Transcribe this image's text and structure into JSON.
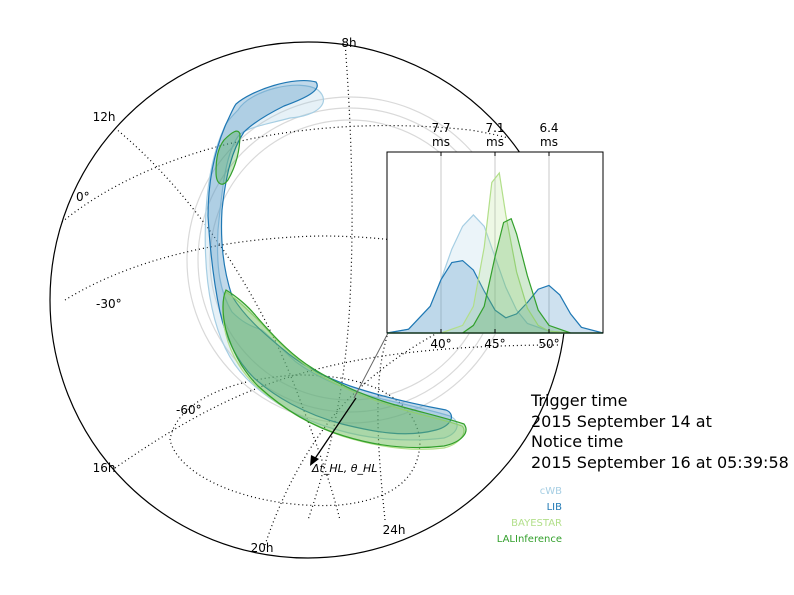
{
  "chart_data": [
    {
      "type": "sky_map",
      "projection": "orthographic",
      "ra_labels": [
        "8h",
        "12h",
        "16h",
        "20h",
        "24h"
      ],
      "dec_labels": [
        "0°",
        "-30°",
        "-60°"
      ],
      "baseline_label": "Δt_HL, θ_HL",
      "series": [
        {
          "name": "cWB",
          "color": "#a6cee3"
        },
        {
          "name": "LIB",
          "color": "#1f78b4"
        },
        {
          "name": "BAYESTAR",
          "color": "#b2df8a"
        },
        {
          "name": "LALInference",
          "color": "#33a02c"
        }
      ]
    },
    {
      "type": "area",
      "xlabel": "",
      "ylabel": "",
      "xlim": [
        35,
        55
      ],
      "x_ticks": [
        "40°",
        "45°",
        "50°"
      ],
      "x_tick_values": [
        40,
        45,
        50
      ],
      "top_ticks": [
        {
          "angle": 40,
          "label_top": "7.7",
          "label_bottom": "ms"
        },
        {
          "angle": 45,
          "label_top": "7.1",
          "label_bottom": "ms"
        },
        {
          "angle": 50,
          "label_top": "6.4",
          "label_bottom": "ms"
        }
      ],
      "grid": "vertical",
      "series": [
        {
          "name": "cWB",
          "color": "#a6cee3",
          "x": [
            35,
            37,
            39,
            40,
            41,
            42,
            43,
            44,
            45,
            46,
            47,
            48,
            50,
            52,
            55
          ],
          "y": [
            0.0,
            0.02,
            0.14,
            0.28,
            0.44,
            0.56,
            0.62,
            0.56,
            0.4,
            0.24,
            0.12,
            0.05,
            0.01,
            0.0,
            0.0
          ]
        },
        {
          "name": "LIB",
          "color": "#1f78b4",
          "x": [
            35,
            37,
            39,
            40,
            41,
            42,
            43,
            44,
            45,
            46,
            47,
            48,
            49,
            50,
            51,
            52,
            53,
            55
          ],
          "y": [
            0.0,
            0.02,
            0.14,
            0.28,
            0.37,
            0.38,
            0.33,
            0.22,
            0.12,
            0.08,
            0.1,
            0.16,
            0.23,
            0.25,
            0.2,
            0.1,
            0.03,
            0.0
          ]
        },
        {
          "name": "BAYESTAR",
          "color": "#b2df8a",
          "x": [
            35,
            40,
            42,
            43,
            44,
            44.7,
            45.4,
            46,
            47,
            48,
            49,
            50,
            52,
            55
          ],
          "y": [
            0.0,
            0.0,
            0.04,
            0.14,
            0.45,
            0.79,
            0.84,
            0.62,
            0.32,
            0.13,
            0.04,
            0.01,
            0.0,
            0.0
          ]
        },
        {
          "name": "LALInference",
          "color": "#33a02c",
          "x": [
            35,
            42,
            43,
            44,
            45,
            45.8,
            46.5,
            47,
            48,
            49,
            50,
            52,
            55
          ],
          "y": [
            0.0,
            0.0,
            0.04,
            0.14,
            0.4,
            0.58,
            0.6,
            0.52,
            0.3,
            0.12,
            0.04,
            0.0,
            0.0
          ]
        }
      ]
    }
  ],
  "annotations": {
    "trigger_label": "Trigger time",
    "trigger_value": "2015 September 14 at",
    "notice_label": "Notice time",
    "notice_value": "2015 September 16 at 05:39:58"
  }
}
